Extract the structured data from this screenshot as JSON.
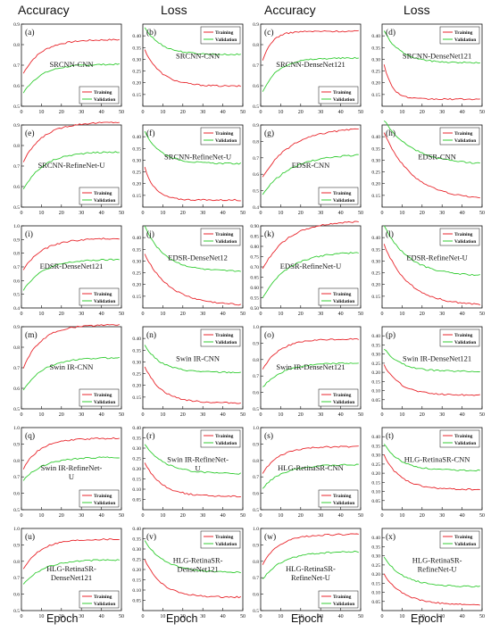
{
  "column_headers": [
    "Accuracy",
    "Loss",
    "Accuracy",
    "Loss"
  ],
  "x_axis_label": "Epoch",
  "colors": {
    "training": "#e8262c",
    "validation": "#33cc33",
    "axis": "#111111"
  },
  "chart_data": [
    {
      "type": "line",
      "panel": "(a)",
      "title": "SRCNN-CNN",
      "ylim": [
        0.5,
        0.9
      ],
      "yticks": [
        "0.5",
        "0.6",
        "0.7",
        "0.8",
        "0.9"
      ],
      "xlim": [
        0,
        50
      ],
      "xticks": [
        "0",
        "10",
        "20",
        "30",
        "40",
        "50"
      ],
      "legend_position": "bottom-right",
      "series": [
        {
          "name": "Training",
          "start": 0.66,
          "end": 0.825,
          "rate": 0.11
        },
        {
          "name": "Validation",
          "start": 0.565,
          "end": 0.705,
          "rate": 0.11
        }
      ]
    },
    {
      "type": "line",
      "panel": "(b)",
      "title": "SRCNN-CNN",
      "ylim": [
        0.1,
        0.45
      ],
      "yticks": [
        "0.15",
        "0.20",
        "0.25",
        "0.30",
        "0.35",
        "0.40"
      ],
      "xlim": [
        0,
        50
      ],
      "xticks": [
        "0",
        "10",
        "20",
        "30",
        "40",
        "50"
      ],
      "legend_position": "top-right",
      "series": [
        {
          "name": "Training",
          "start": 0.34,
          "end": 0.185,
          "rate": 0.12
        },
        {
          "name": "Validation",
          "start": 0.435,
          "end": 0.32,
          "rate": 0.12
        }
      ]
    },
    {
      "type": "line",
      "panel": "(c)",
      "title": "SRCNN-DenseNet121",
      "ylim": [
        0.5,
        0.9
      ],
      "yticks": [
        "0.5",
        "0.6",
        "0.7",
        "0.8",
        "0.9"
      ],
      "xlim": [
        0,
        50
      ],
      "xticks": [
        "0",
        "10",
        "20",
        "30",
        "40",
        "50"
      ],
      "legend_position": "bottom-right",
      "series": [
        {
          "name": "Training",
          "start": 0.72,
          "end": 0.865,
          "rate": 0.22
        },
        {
          "name": "Validation",
          "start": 0.57,
          "end": 0.735,
          "rate": 0.13
        }
      ]
    },
    {
      "type": "line",
      "panel": "(d)",
      "title": "SRCNN-DenseNet121",
      "ylim": [
        0.1,
        0.45
      ],
      "yticks": [
        "0.15",
        "0.20",
        "0.25",
        "0.30",
        "0.35",
        "0.40"
      ],
      "xlim": [
        0,
        50
      ],
      "xticks": [
        "0",
        "10",
        "20",
        "30",
        "40",
        "50"
      ],
      "legend_position": "top-right",
      "series": [
        {
          "name": "Training",
          "start": 0.28,
          "end": 0.13,
          "rate": 0.25
        },
        {
          "name": "Validation",
          "start": 0.42,
          "end": 0.285,
          "rate": 0.12
        }
      ]
    },
    {
      "type": "line",
      "panel": "(e)",
      "title": "SRCNN-RefineNet-U",
      "ylim": [
        0.5,
        0.9
      ],
      "yticks": [
        "0.5",
        "0.6",
        "0.7",
        "0.8",
        "0.9"
      ],
      "xlim": [
        0,
        50
      ],
      "xticks": [
        "0",
        "10",
        "20",
        "30",
        "40",
        "50"
      ],
      "legend_position": "bottom-right",
      "series": [
        {
          "name": "Training",
          "start": 0.72,
          "end": 0.915,
          "rate": 0.1
        },
        {
          "name": "Validation",
          "start": 0.585,
          "end": 0.77,
          "rate": 0.1
        }
      ]
    },
    {
      "type": "line",
      "panel": "(f)",
      "title": "SRCNN-RefineNet-U",
      "ylim": [
        0.1,
        0.45
      ],
      "yticks": [
        "0.15",
        "0.20",
        "0.25",
        "0.30",
        "0.35",
        "0.40"
      ],
      "xlim": [
        0,
        50
      ],
      "xticks": [
        "0",
        "10",
        "20",
        "30",
        "40",
        "50"
      ],
      "legend_position": "top-right",
      "series": [
        {
          "name": "Training",
          "start": 0.27,
          "end": 0.13,
          "rate": 0.2
        },
        {
          "name": "Validation",
          "start": 0.42,
          "end": 0.285,
          "rate": 0.12
        }
      ]
    },
    {
      "type": "line",
      "panel": "(g)",
      "title": "EDSR-CNN",
      "ylim": [
        0.4,
        0.9
      ],
      "yticks": [
        "0.4",
        "0.5",
        "0.6",
        "0.7",
        "0.8",
        "0.9"
      ],
      "xlim": [
        0,
        50
      ],
      "xticks": [
        "0",
        "10",
        "20",
        "30",
        "40",
        "50"
      ],
      "legend_position": "bottom-right",
      "series": [
        {
          "name": "Training",
          "start": 0.58,
          "end": 0.885,
          "rate": 0.07
        },
        {
          "name": "Validation",
          "start": 0.48,
          "end": 0.725,
          "rate": 0.07
        }
      ]
    },
    {
      "type": "line",
      "panel": "(h)",
      "title": "EDSR-CNN",
      "ylim": [
        0.1,
        0.45
      ],
      "yticks": [
        "0.15",
        "0.20",
        "0.25",
        "0.30",
        "0.35",
        "0.40"
      ],
      "xlim": [
        0,
        50
      ],
      "xticks": [
        "0",
        "10",
        "20",
        "30",
        "40",
        "50"
      ],
      "legend_position": "top-right",
      "series": [
        {
          "name": "Training",
          "start": 0.42,
          "end": 0.13,
          "rate": 0.07
        },
        {
          "name": "Validation",
          "start": 0.47,
          "end": 0.28,
          "rate": 0.07
        }
      ]
    },
    {
      "type": "line",
      "panel": "(i)",
      "title": "EDSR-DenseNet121",
      "ylim": [
        0.4,
        1.0
      ],
      "yticks": [
        "0.4",
        "0.5",
        "0.6",
        "0.7",
        "0.8",
        "0.9",
        "1.0"
      ],
      "xlim": [
        0,
        50
      ],
      "xticks": [
        "0",
        "10",
        "20",
        "30",
        "40",
        "50"
      ],
      "legend_position": "bottom-right",
      "series": [
        {
          "name": "Training",
          "start": 0.68,
          "end": 0.91,
          "rate": 0.1
        },
        {
          "name": "Validation",
          "start": 0.53,
          "end": 0.755,
          "rate": 0.1
        }
      ]
    },
    {
      "type": "line",
      "panel": "(j)",
      "title": "EDSR-DenseNet12",
      "ylim": [
        0.1,
        0.45
      ],
      "yticks": [
        "0.15",
        "0.20",
        "0.25",
        "0.30",
        "0.35",
        "0.40"
      ],
      "xlim": [
        0,
        50
      ],
      "xticks": [
        "0",
        "10",
        "20",
        "30",
        "40",
        "50"
      ],
      "legend_position": "top-right",
      "series": [
        {
          "name": "Training",
          "start": 0.33,
          "end": 0.11,
          "rate": 0.08
        },
        {
          "name": "Validation",
          "start": 0.45,
          "end": 0.255,
          "rate": 0.1
        }
      ]
    },
    {
      "type": "line",
      "panel": "(k)",
      "title": "EDSR-RefineNet-U",
      "ylim": [
        0.5,
        0.9
      ],
      "yticks": [
        "0.50",
        "0.55",
        "0.60",
        "0.65",
        "0.70",
        "0.75",
        "0.80",
        "0.85",
        "0.90"
      ],
      "xlim": [
        0,
        50
      ],
      "xticks": [
        "0",
        "10",
        "20",
        "30",
        "40",
        "50"
      ],
      "legend_position": "bottom-right",
      "series": [
        {
          "name": "Training",
          "start": 0.69,
          "end": 0.925,
          "rate": 0.08
        },
        {
          "name": "Validation",
          "start": 0.55,
          "end": 0.775,
          "rate": 0.08
        }
      ]
    },
    {
      "type": "line",
      "panel": "(l)",
      "title": "EDSR-RefineNet-U",
      "ylim": [
        0.1,
        0.45
      ],
      "yticks": [
        "0.15",
        "0.20",
        "0.25",
        "0.30",
        "0.35",
        "0.40"
      ],
      "xlim": [
        0,
        50
      ],
      "xticks": [
        "0",
        "10",
        "20",
        "30",
        "40",
        "50"
      ],
      "legend_position": "top-right",
      "series": [
        {
          "name": "Training",
          "start": 0.37,
          "end": 0.11,
          "rate": 0.08
        },
        {
          "name": "Validation",
          "start": 0.45,
          "end": 0.235,
          "rate": 0.08
        }
      ]
    },
    {
      "type": "line",
      "panel": "(m)",
      "title": "Swin IR-CNN",
      "ylim": [
        0.5,
        0.9
      ],
      "yticks": [
        "0.5",
        "0.6",
        "0.7",
        "0.8",
        "0.9"
      ],
      "xlim": [
        0,
        50
      ],
      "xticks": [
        "0",
        "10",
        "20",
        "30",
        "40",
        "50"
      ],
      "legend_position": "bottom-right",
      "series": [
        {
          "name": "Training",
          "start": 0.7,
          "end": 0.91,
          "rate": 0.11
        },
        {
          "name": "Validation",
          "start": 0.59,
          "end": 0.75,
          "rate": 0.1
        }
      ]
    },
    {
      "type": "line",
      "panel": "(n)",
      "title": "Swin IR-CNN",
      "ylim": [
        0.1,
        0.45
      ],
      "yticks": [
        "0.15",
        "0.20",
        "0.25",
        "0.30",
        "0.35",
        "0.40"
      ],
      "xlim": [
        0,
        50
      ],
      "xticks": [
        "0",
        "10",
        "20",
        "30",
        "40",
        "50"
      ],
      "legend_position": "top-right",
      "series": [
        {
          "name": "Training",
          "start": 0.28,
          "end": 0.125,
          "rate": 0.12
        },
        {
          "name": "Validation",
          "start": 0.37,
          "end": 0.255,
          "rate": 0.12
        }
      ]
    },
    {
      "type": "line",
      "panel": "(o)",
      "title": "Swin IR-DenseNet121",
      "ylim": [
        0.5,
        1.0
      ],
      "yticks": [
        "0.5",
        "0.6",
        "0.7",
        "0.8",
        "0.9",
        "1.0"
      ],
      "xlim": [
        0,
        50
      ],
      "xticks": [
        "0",
        "10",
        "20",
        "30",
        "40",
        "50"
      ],
      "legend_position": "bottom-right",
      "series": [
        {
          "name": "Training",
          "start": 0.74,
          "end": 0.925,
          "rate": 0.12
        },
        {
          "name": "Validation",
          "start": 0.63,
          "end": 0.78,
          "rate": 0.1
        }
      ]
    },
    {
      "type": "line",
      "panel": "(p)",
      "title": "Swin IR-DenseNet121",
      "ylim": [
        0.0,
        0.45
      ],
      "yticks": [
        "0.05",
        "0.10",
        "0.15",
        "0.20",
        "0.25",
        "0.30",
        "0.35",
        "0.40"
      ],
      "xlim": [
        0,
        50
      ],
      "xticks": [
        "0",
        "10",
        "20",
        "30",
        "40",
        "50"
      ],
      "legend_position": "top-right",
      "series": [
        {
          "name": "Training",
          "start": 0.24,
          "end": 0.075,
          "rate": 0.12
        },
        {
          "name": "Validation",
          "start": 0.33,
          "end": 0.205,
          "rate": 0.12
        }
      ]
    },
    {
      "type": "line",
      "panel": "(q)",
      "title": "Swin IR-RefineNet-U",
      "ylim": [
        0.5,
        1.0
      ],
      "yticks": [
        "0.5",
        "0.6",
        "0.7",
        "0.8",
        "0.9",
        "1.0"
      ],
      "xlim": [
        0,
        50
      ],
      "xticks": [
        "0",
        "10",
        "20",
        "30",
        "40",
        "50"
      ],
      "legend_position": "bottom-right",
      "series": [
        {
          "name": "Training",
          "start": 0.75,
          "end": 0.935,
          "rate": 0.12
        },
        {
          "name": "Validation",
          "start": 0.68,
          "end": 0.82,
          "rate": 0.1
        }
      ]
    },
    {
      "type": "line",
      "panel": "(r)",
      "title": "Swin IR-RefineNet-U",
      "ylim": [
        0.0,
        0.4
      ],
      "yticks": [
        "0.05",
        "0.10",
        "0.15",
        "0.20",
        "0.25",
        "0.30",
        "0.35",
        "0.40"
      ],
      "xlim": [
        0,
        50
      ],
      "xticks": [
        "0",
        "10",
        "20",
        "30",
        "40",
        "50"
      ],
      "legend_position": "top-right",
      "series": [
        {
          "name": "Training",
          "start": 0.23,
          "end": 0.065,
          "rate": 0.12
        },
        {
          "name": "Validation",
          "start": 0.32,
          "end": 0.175,
          "rate": 0.1
        }
      ]
    },
    {
      "type": "line",
      "panel": "(s)",
      "title": "HLG-RetinaSR-CNN",
      "ylim": [
        0.5,
        1.0
      ],
      "yticks": [
        "0.5",
        "0.6",
        "0.7",
        "0.8",
        "0.9",
        "1.0"
      ],
      "xlim": [
        0,
        50
      ],
      "xticks": [
        "0",
        "10",
        "20",
        "30",
        "40",
        "50"
      ],
      "legend_position": "bottom-right",
      "series": [
        {
          "name": "Training",
          "start": 0.72,
          "end": 0.885,
          "rate": 0.12
        },
        {
          "name": "Validation",
          "start": 0.63,
          "end": 0.775,
          "rate": 0.1
        }
      ]
    },
    {
      "type": "line",
      "panel": "(t)",
      "title": "HLG-RetinaSR-CNN",
      "ylim": [
        0.0,
        0.45
      ],
      "yticks": [
        "0.05",
        "0.10",
        "0.15",
        "0.20",
        "0.25",
        "0.30",
        "0.35",
        "0.40"
      ],
      "xlim": [
        0,
        50
      ],
      "xticks": [
        "0",
        "10",
        "20",
        "30",
        "40",
        "50"
      ],
      "legend_position": "top-right",
      "series": [
        {
          "name": "Training",
          "start": 0.3,
          "end": 0.11,
          "rate": 0.12
        },
        {
          "name": "Validation",
          "start": 0.36,
          "end": 0.215,
          "rate": 0.12
        }
      ]
    },
    {
      "type": "line",
      "panel": "(u)",
      "title": "HLG-RetinaSR-DenseNet121",
      "ylim": [
        0.5,
        1.0
      ],
      "yticks": [
        "0.5",
        "0.6",
        "0.7",
        "0.8",
        "0.9",
        "1.0"
      ],
      "xlim": [
        0,
        50
      ],
      "xticks": [
        "0",
        "10",
        "20",
        "30",
        "40",
        "50"
      ],
      "legend_position": "bottom-right",
      "series": [
        {
          "name": "Training",
          "start": 0.75,
          "end": 0.935,
          "rate": 0.12
        },
        {
          "name": "Validation",
          "start": 0.66,
          "end": 0.81,
          "rate": 0.1
        }
      ]
    },
    {
      "type": "line",
      "panel": "(v)",
      "title": "HLG-RetinaSR-DenseNet121",
      "ylim": [
        0.0,
        0.4
      ],
      "yticks": [
        "0.05",
        "0.10",
        "0.15",
        "0.20",
        "0.25",
        "0.30",
        "0.35",
        "0.40"
      ],
      "xlim": [
        0,
        50
      ],
      "xticks": [
        "0",
        "10",
        "20",
        "30",
        "40",
        "50"
      ],
      "legend_position": "top-right",
      "series": [
        {
          "name": "Training",
          "start": 0.25,
          "end": 0.065,
          "rate": 0.12
        },
        {
          "name": "Validation",
          "start": 0.34,
          "end": 0.185,
          "rate": 0.1
        }
      ]
    },
    {
      "type": "line",
      "panel": "(w)",
      "title": "HLG-RetinaSR-RefineNet-U",
      "ylim": [
        0.5,
        1.0
      ],
      "yticks": [
        "0.5",
        "0.6",
        "0.7",
        "0.8",
        "0.9",
        "1.0"
      ],
      "xlim": [
        0,
        50
      ],
      "xticks": [
        "0",
        "10",
        "20",
        "30",
        "40",
        "50"
      ],
      "legend_position": "bottom-right",
      "series": [
        {
          "name": "Training",
          "start": 0.78,
          "end": 0.965,
          "rate": 0.12
        },
        {
          "name": "Validation",
          "start": 0.69,
          "end": 0.86,
          "rate": 0.1
        }
      ]
    },
    {
      "type": "line",
      "panel": "(x)",
      "title": "HLG-RetinaSR-RefineNet-U",
      "ylim": [
        0.0,
        0.45
      ],
      "yticks": [
        "0.05",
        "0.10",
        "0.15",
        "0.20",
        "0.25",
        "0.30",
        "0.35",
        "0.40"
      ],
      "xlim": [
        0,
        50
      ],
      "xticks": [
        "0",
        "10",
        "20",
        "30",
        "40",
        "50"
      ],
      "legend_position": "top-right",
      "series": [
        {
          "name": "Training",
          "start": 0.2,
          "end": 0.03,
          "rate": 0.1
        },
        {
          "name": "Validation",
          "start": 0.29,
          "end": 0.13,
          "rate": 0.1
        }
      ]
    }
  ]
}
